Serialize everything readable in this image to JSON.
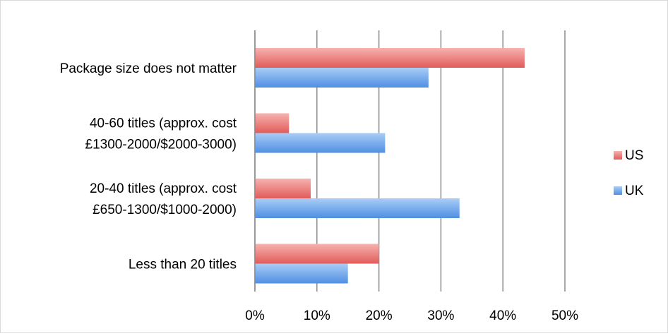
{
  "chart_data": {
    "type": "bar",
    "orientation": "horizontal",
    "categories": [
      [
        "Package size does not matter"
      ],
      [
        "40-60 titles (approx. cost",
        "£1300-2000/$2000-3000)"
      ],
      [
        "20-40 titles (approx. cost",
        "£650-1300/$1000-2000)"
      ],
      [
        "Less than 20 titles"
      ]
    ],
    "series": [
      {
        "name": "US",
        "values": [
          43.5,
          5.5,
          9,
          20
        ],
        "color": "#e46c6a"
      },
      {
        "name": "UK",
        "values": [
          28,
          21,
          33,
          15
        ],
        "color": "#5f9ae6"
      }
    ],
    "title": "",
    "xlabel": "",
    "ylabel": "",
    "xlim": [
      0,
      50
    ],
    "x_ticks": [
      0,
      10,
      20,
      30,
      40,
      50
    ],
    "x_tick_labels": [
      "0%",
      "10%",
      "20%",
      "30%",
      "40%",
      "50%"
    ],
    "grid": "vertical",
    "legend": "right"
  }
}
